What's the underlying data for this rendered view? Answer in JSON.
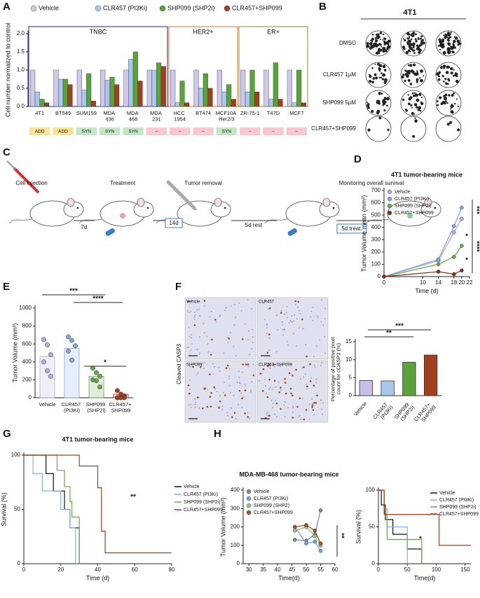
{
  "panel_labels": [
    "A",
    "B",
    "C",
    "D",
    "E",
    "F",
    "G",
    "H"
  ],
  "chart_data": [
    {
      "type": "grouped_bar",
      "ylabel": "Cell number normalized to control",
      "legend": "top",
      "categories": [
        "4T1",
        "BT549",
        "SUM159",
        "MDA 436",
        "MDA 468",
        "MDA 231",
        "HCC 1954",
        "BT474",
        "MCF10A Her2/3",
        "ZR-75-1",
        "T47D",
        "MCF7"
      ],
      "series": [
        {
          "name": "Vehicle",
          "color": "#cfc8ea",
          "values": [
            1.0,
            1.0,
            1.0,
            1.0,
            1.0,
            1.0,
            1.0,
            1.0,
            1.0,
            1.0,
            1.0,
            1.0
          ]
        },
        {
          "name": "CLR457 (PI3Ki)",
          "color": "#aac8ec",
          "values": [
            0.4,
            0.75,
            0.45,
            0.72,
            1.3,
            1.0,
            0.1,
            0.5,
            0.4,
            0.4,
            0.2,
            0.1
          ]
        },
        {
          "name": "SHP099 (SHP2i)",
          "color": "#5aa33c",
          "values": [
            0.2,
            0.75,
            0.9,
            0.8,
            1.5,
            1.2,
            0.7,
            0.9,
            0.6,
            1.0,
            1.2,
            1.0
          ]
        },
        {
          "name": "CLR457+SHP099",
          "color": "#a0401f",
          "values": [
            0.1,
            0.6,
            0.15,
            0.6,
            0.7,
            1.1,
            0.1,
            0.5,
            0.2,
            0.4,
            0.2,
            0.1
          ]
        }
      ],
      "groups": [
        {
          "name": "TNBC",
          "start": 0,
          "end": 5,
          "color": "#3a4aa8"
        },
        {
          "name": "HER2+",
          "start": 6,
          "end": 8,
          "color": "#e8894a"
        },
        {
          "name": "ER+",
          "start": 9,
          "end": 11,
          "color": "#a89a4a"
        }
      ],
      "interaction": [
        {
          "label": "ADD",
          "color": "#f9e39a"
        },
        {
          "label": "ADD",
          "color": "#f9e39a"
        },
        {
          "label": "SYN",
          "color": "#c4e6c4"
        },
        {
          "label": "SYN",
          "color": "#c4e6c4"
        },
        {
          "label": "SYN",
          "color": "#c4e6c4"
        },
        {
          "label": "–",
          "color": "#f7c8cf"
        },
        {
          "label": "–",
          "color": "#f7c8cf"
        },
        {
          "label": "–",
          "color": "#f7c8cf"
        },
        {
          "label": "SYN",
          "color": "#c4e6c4"
        },
        {
          "label": "–",
          "color": "#f7c8cf"
        },
        {
          "label": "–",
          "color": "#f7c8cf"
        },
        {
          "label": "–",
          "color": "#f7c8cf"
        }
      ],
      "ylim": [
        0,
        2
      ],
      "yticks": [
        {
          "value": 0,
          "label": "0.0"
        },
        {
          "value": 0.5,
          "label": "0.5"
        },
        {
          "value": 1,
          "label": "1.0"
        },
        {
          "value": 1.5,
          "label": "1.5"
        },
        {
          "value": 2,
          "label": "2.0"
        }
      ]
    },
    {
      "type": "line",
      "title": "4T1 tumor-bearing mice",
      "xlabel": "Time (d)",
      "ylabel": "Tumor Volume  mean (mm³)",
      "legend": "upper left",
      "x": [
        0,
        14,
        18,
        20
      ],
      "series": [
        {
          "name": "Vehicle",
          "color": "#b9a6e0",
          "values": [
            0,
            130,
            360,
            470
          ]
        },
        {
          "name": "CLR457 (PI3Ki)",
          "color": "#7fa8e0",
          "values": [
            0,
            140,
            410,
            560
          ]
        },
        {
          "name": "SHP099 (SHP2i)",
          "color": "#6aa84f",
          "values": [
            0,
            100,
            160,
            250
          ]
        },
        {
          "name": "CLR457+SHP099",
          "color": "#8b2e1a",
          "values": [
            0,
            40,
            20,
            50
          ]
        }
      ],
      "xlim": [
        0,
        22
      ],
      "xticks": [
        0,
        10,
        14,
        18,
        20,
        22
      ],
      "ylim": [
        0,
        700
      ],
      "yticks": [
        0,
        100,
        200,
        300,
        400,
        500,
        600,
        700
      ],
      "annotations": [
        "***",
        "*",
        "****",
        "*"
      ]
    },
    {
      "type": "bar",
      "ylabel": "Tumor Volume (mm³)",
      "bar_style": "outline",
      "categories": [
        "Vehicle",
        "CLR457 (PI3Ki)",
        "SHP099 (SHP2i)",
        "CLR457+ SHP099"
      ],
      "values": [
        460,
        550,
        240,
        40
      ],
      "colors": [
        "#b9a6e0",
        "#7fa8e0",
        "#6aa84f",
        "#a0401f"
      ],
      "points": [
        [
          650,
          590,
          480,
          400,
          300,
          240
        ],
        [
          680,
          640,
          580,
          520,
          420
        ],
        [
          330,
          280,
          240,
          200,
          190,
          120
        ],
        [
          80,
          40,
          20,
          0,
          0,
          0,
          0
        ]
      ],
      "ylim": [
        0,
        1000
      ],
      "yticks": [
        0,
        200,
        400,
        600,
        800,
        1000
      ],
      "annotations": [
        "***",
        "****",
        "*"
      ]
    },
    {
      "type": "bar",
      "ylabel": "Percentage of positive pixel count for cCASP3 (%)",
      "bar_style": "solid",
      "categories": [
        "Vehicle",
        "CLR457 (PI3Ki)",
        "SHP099 (SHP2i)",
        "CLR457+ SHP099"
      ],
      "values": [
        4.2,
        4.1,
        9.3,
        11.3
      ],
      "colors": [
        "#c9c0e8",
        "#a9c6ec",
        "#5aa33c",
        "#a0401f"
      ],
      "ylim": [
        0,
        15
      ],
      "yticks": [
        0,
        5,
        10,
        15
      ],
      "annotations": [
        "**",
        "***"
      ]
    },
    {
      "type": "step",
      "title": "4T1 tumor-bearing mice",
      "xlabel": "Time (d)",
      "ylabel": "Survival (%)",
      "legend": "right",
      "series": [
        {
          "name": "Vehicle",
          "color": "#111111",
          "x": [
            0,
            12,
            16,
            22,
            25,
            30
          ],
          "values": [
            100,
            83,
            67,
            50,
            33,
            0
          ]
        },
        {
          "name": "CLR457 (PI3Ki)",
          "color": "#7fb3e0",
          "x": [
            0,
            5,
            10,
            20,
            25,
            28
          ],
          "values": [
            100,
            83,
            67,
            50,
            33,
            0
          ]
        },
        {
          "name": "SHP099 (SHP2i)",
          "color": "#6aa84f",
          "x": [
            0,
            18,
            22,
            25,
            26,
            30
          ],
          "values": [
            100,
            86,
            71,
            57,
            43,
            0
          ]
        },
        {
          "name": "CLR457+SHP099",
          "color": "#a0401f",
          "x": [
            0,
            30,
            40,
            42,
            44,
            80
          ],
          "values": [
            100,
            90,
            70,
            30,
            10,
            10
          ]
        }
      ],
      "xlim": [
        0,
        80
      ],
      "xticks": [
        0,
        20,
        40,
        60,
        80
      ],
      "ylim": [
        0,
        100
      ],
      "yticks": [
        0,
        50,
        100
      ],
      "annotations": [
        "**"
      ]
    },
    {
      "type": "line",
      "title": "MDA-MB-468 tumor-bearing mice",
      "xlabel": "Time(d)",
      "ylabel": "Tumor Volume (mm³)",
      "legend": "upper left",
      "x": [
        46,
        50,
        53,
        55
      ],
      "series": [
        {
          "name": "Vehicle",
          "color": "#888888",
          "values": [
            130,
            125,
            160,
            290
          ]
        },
        {
          "name": "CLR457 (PI3Ki)",
          "color": "#6fa8dc",
          "values": [
            200,
            110,
            120,
            70
          ]
        },
        {
          "name": "SHP099 (SHP2)",
          "color": "#93c47d",
          "values": [
            180,
            200,
            150,
            100
          ]
        },
        {
          "name": "CLR457+SHP099",
          "color": "#a0522d",
          "values": [
            200,
            210,
            180,
            110
          ]
        }
      ],
      "xlim": [
        28,
        60
      ],
      "xticks": [
        30,
        35,
        40,
        45,
        50,
        55,
        60
      ],
      "ylim": [
        0,
        400
      ],
      "yticks": [
        0,
        100,
        200,
        300,
        400
      ],
      "annotations": [
        "**"
      ]
    },
    {
      "type": "step",
      "xlabel": "Time(d)",
      "ylabel": "Survival (%)",
      "legend": "upper right",
      "series": [
        {
          "name": "Vehicle",
          "color": "#111111",
          "x": [
            0,
            5,
            12,
            25,
            50,
            75
          ],
          "values": [
            100,
            80,
            60,
            40,
            20,
            0
          ]
        },
        {
          "name": "CLR457 (PI3Ki)",
          "color": "#7fb3e0",
          "x": [
            0,
            10,
            15,
            50
          ],
          "values": [
            100,
            75,
            50,
            0
          ]
        },
        {
          "name": "SHP099 (SHP2i)",
          "color": "#6aa84f",
          "x": [
            0,
            10,
            15,
            75
          ],
          "values": [
            100,
            67,
            33,
            0
          ]
        },
        {
          "name": "CLR457+SHP099",
          "color": "#a0401f",
          "x": [
            0,
            10,
            105,
            160
          ],
          "values": [
            100,
            67,
            25,
            25
          ]
        }
      ],
      "xlim": [
        0,
        160
      ],
      "xticks": [
        0,
        50,
        100,
        150
      ],
      "ylim": [
        0,
        100
      ],
      "yticks": [
        0,
        50,
        100
      ],
      "annotations": [
        "*"
      ]
    }
  ],
  "panel_b": {
    "title": "4T1",
    "rows": [
      "DMSO",
      "CLR457 1µM",
      "SHP099 5µM",
      "CLR457+SHP099"
    ]
  },
  "panel_c": {
    "steps": [
      "Cell injection",
      "Treatment",
      "Tumor  removal",
      "Monitoring overall survival"
    ],
    "intervals": [
      "7d",
      "14d",
      "5d rest",
      "5d treat."
    ]
  },
  "panel_f": {
    "ylabel": "Cleaved CASP3",
    "images": [
      "Vehicle",
      "CLR457",
      "SHP099",
      "CLR457+SHP099"
    ]
  }
}
